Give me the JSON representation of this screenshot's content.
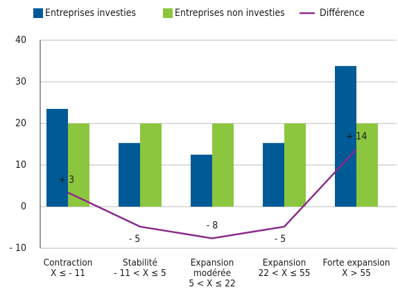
{
  "chart_data": {
    "type": "bar_line",
    "categories": [
      "Contraction\nX ≤ - 11",
      "Stabilité\n- 11 < X ≤ 5",
      "Expansion\nmodérée\n5 < X ≤ 22",
      "Expansion\n22 < X ≤ 55",
      "Forte expansion\nX > 55"
    ],
    "series": [
      {
        "name": "Entreprises investies",
        "color": "#005a96",
        "type": "bar",
        "values": [
          23.5,
          15.3,
          12.5,
          15.3,
          33.8
        ]
      },
      {
        "name": "Entreprises non investies",
        "color": "#8cc63f",
        "type": "bar",
        "values": [
          20,
          20,
          20,
          20,
          20
        ]
      },
      {
        "name": "Différence",
        "color": "#8b2a8b",
        "type": "line",
        "values": [
          3.4,
          -4.8,
          -7.6,
          -4.8,
          13.8
        ],
        "value_labels": [
          "+ 3",
          "- 5",
          "- 8",
          "- 5",
          "+ 14"
        ]
      }
    ],
    "ylim": [
      -10,
      40
    ],
    "yticks": [
      {
        "value": -10,
        "label": "- 10"
      },
      0,
      10,
      20,
      30,
      40
    ],
    "grid": true
  }
}
